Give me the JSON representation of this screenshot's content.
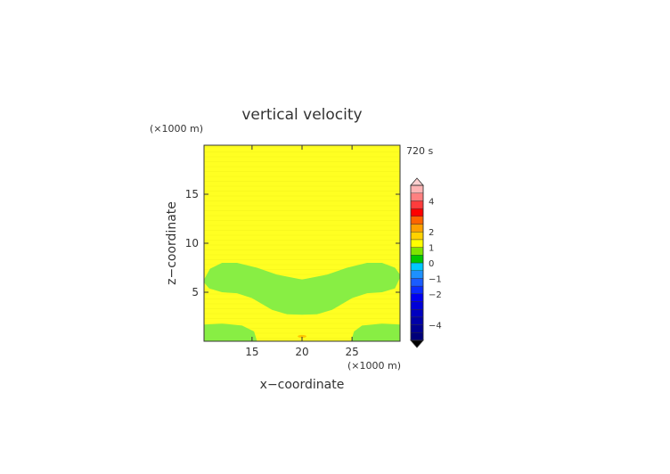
{
  "chart_data": {
    "type": "heatmap",
    "title": "vertical velocity",
    "time_label": "720 s",
    "xlabel": "x−coordinate",
    "ylabel": "z−coordinate",
    "x_unit": "(×1000 m)",
    "y_unit": "(×1000 m)",
    "xlim": [
      10.2,
      29.8
    ],
    "ylim": [
      0,
      20
    ],
    "x_ticks": [
      15,
      20,
      25
    ],
    "x_tick_labels": [
      "15",
      "20",
      "25"
    ],
    "y_ticks": [
      5,
      10,
      15
    ],
    "y_tick_labels": [
      "5",
      "10",
      "15"
    ],
    "background_level": "0 to 0.5",
    "regions": [
      {
        "name": "mid-level band",
        "level": "-0.5 to 0",
        "z_range": [
          2.7,
          8.1
        ]
      },
      {
        "name": "near-surface left lobe",
        "level": "-0.5 to 0",
        "x_range": [
          10.2,
          15.5
        ],
        "z_range": [
          0,
          1.8
        ]
      },
      {
        "name": "near-surface right lobe",
        "level": "-0.5 to 0",
        "x_range": [
          25.0,
          29.8
        ],
        "z_range": [
          0,
          1.8
        ]
      }
    ],
    "colorbar": {
      "tick_labels": [
        "4",
        "2",
        "1",
        "0",
        "−1",
        "−2",
        "−4"
      ],
      "tick_values": [
        4,
        2,
        1,
        0,
        -1,
        -2,
        -4
      ],
      "levels": [
        -5,
        -4.5,
        -4,
        -3.5,
        -3,
        -2.5,
        -2,
        -1.5,
        -1,
        -0.5,
        0,
        0.5,
        1,
        1.5,
        2,
        2.5,
        3,
        3.5,
        4,
        4.5,
        5
      ],
      "colors": [
        "#00007a",
        "#000090",
        "#0000a8",
        "#0000c0",
        "#0000d8",
        "#0000f0",
        "#0a2cff",
        "#1a5cff",
        "#1e90ff",
        "#00c8ff",
        "#00c800",
        "#7ee400",
        "#ffff00",
        "#ffd200",
        "#ffa000",
        "#ff6400",
        "#ff0000",
        "#ff3c3c",
        "#ff8080",
        "#ffb4b4"
      ],
      "over_color": "#ffd0d0",
      "under_color": "#000000"
    },
    "colors": {
      "field_yellow": "#ffff22",
      "field_green": "#88ee44",
      "axis": "#333333"
    }
  }
}
